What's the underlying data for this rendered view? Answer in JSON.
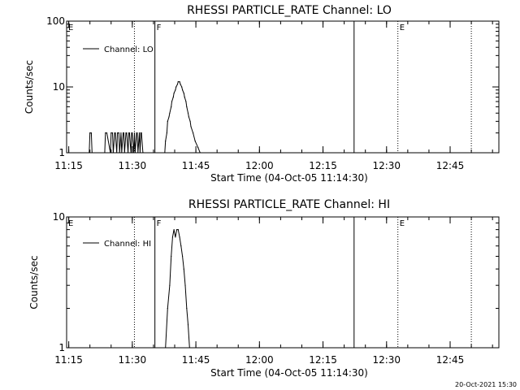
{
  "chart_data": [
    {
      "type": "line",
      "title": "RHESSI PARTICLE_RATE Channel: LO",
      "xlabel": "Start Time (04-Oct-05 11:14:30)",
      "ylabel": "Counts/sec",
      "y_scale": "log",
      "ylim": [
        1,
        100
      ],
      "y_ticks": [
        1,
        10,
        100
      ],
      "xlim": [
        "11:14:30",
        "12:56:30"
      ],
      "x_tick_labels": [
        "11:15",
        "11:30",
        "11:45",
        "12:00",
        "12:15",
        "12:30",
        "12:45"
      ],
      "x_tick_values": [
        "11:15",
        "11:30",
        "11:45",
        "12:00",
        "12:15",
        "12:30",
        "12:45"
      ],
      "grid": false,
      "legend_position": "top-left",
      "series": [
        {
          "name": "Channel: LO",
          "x": [
            "11:19:50",
            "11:20:00",
            "11:20:20",
            "11:20:30",
            "11:23:30",
            "11:23:40",
            "11:24:00",
            "11:24:50",
            "11:25:00",
            "11:25:20",
            "11:25:30",
            "11:25:50",
            "11:26:00",
            "11:26:20",
            "11:26:30",
            "11:26:50",
            "11:27:00",
            "11:27:20",
            "11:27:30",
            "11:27:50",
            "11:28:00",
            "11:28:10",
            "11:28:30",
            "11:28:40",
            "11:29:00",
            "11:29:10",
            "11:29:20",
            "11:29:40",
            "11:29:50",
            "11:30:00",
            "11:30:20",
            "11:30:30",
            "11:30:40",
            "11:31:00",
            "11:31:10",
            "11:31:20",
            "11:31:40",
            "11:31:50",
            "11:32:00",
            "11:32:10",
            "11:32:30",
            "11:32:40",
            "11:37:40",
            "11:37:50",
            "11:38:10",
            "11:38:20",
            "11:38:40",
            "11:38:50",
            "11:39:10",
            "11:39:20",
            "11:39:40",
            "11:39:50",
            "11:40:10",
            "11:40:20",
            "11:40:40",
            "11:40:50",
            "11:41:10",
            "11:41:20",
            "11:41:40",
            "11:41:50",
            "11:42:10",
            "11:42:20",
            "11:42:40",
            "11:42:50",
            "11:43:10",
            "11:43:20",
            "11:43:40",
            "11:43:50",
            "11:44:20",
            "11:44:50",
            "11:45:30",
            "11:46:00"
          ],
          "y": [
            1,
            2,
            2,
            1,
            1,
            2,
            2,
            1,
            2,
            2,
            1,
            2,
            2,
            1,
            2,
            2,
            1,
            2,
            1,
            2,
            2,
            1,
            2,
            2,
            1,
            2,
            2,
            1,
            2,
            2,
            1,
            2,
            1,
            2,
            2,
            1,
            2,
            1,
            2,
            2,
            1,
            1,
            1,
            1.5,
            2,
            3,
            3.5,
            4,
            5,
            6,
            7,
            8,
            9,
            10,
            11,
            12,
            12,
            11,
            10,
            9,
            8,
            7,
            6,
            5,
            4,
            3.5,
            3,
            2.5,
            2,
            1.5,
            1.2,
            1
          ]
        }
      ],
      "annotations": [
        {
          "text": "E",
          "x": "11:14:30"
        },
        {
          "text": "F",
          "x": "11:35:20"
        },
        {
          "text": "E",
          "x": "12:32:40"
        }
      ],
      "vertical_lines": [
        {
          "x": "11:30:30",
          "style": "dotted"
        },
        {
          "x": "11:35:20",
          "style": "solid"
        },
        {
          "x": "12:22:20",
          "style": "solid"
        },
        {
          "x": "12:32:40",
          "style": "dotted"
        },
        {
          "x": "12:50:00",
          "style": "dotted"
        }
      ]
    },
    {
      "type": "line",
      "title": "RHESSI PARTICLE_RATE Channel: HI",
      "xlabel": "Start Time (04-Oct-05 11:14:30)",
      "ylabel": "Counts/sec",
      "y_scale": "log",
      "ylim": [
        1,
        10
      ],
      "y_ticks": [
        1,
        10
      ],
      "xlim": [
        "11:14:30",
        "12:56:30"
      ],
      "x_tick_labels": [
        "11:15",
        "11:30",
        "11:45",
        "12:00",
        "12:15",
        "12:30",
        "12:45"
      ],
      "x_tick_values": [
        "11:15",
        "11:30",
        "11:45",
        "12:00",
        "12:15",
        "12:30",
        "12:45"
      ],
      "grid": false,
      "legend_position": "top-left",
      "series": [
        {
          "name": "Channel: HI",
          "x": [
            "11:37:50",
            "11:38:20",
            "11:38:50",
            "11:39:10",
            "11:39:30",
            "11:39:50",
            "11:40:10",
            "11:40:30",
            "11:40:50",
            "11:41:10",
            "11:41:30",
            "11:41:50",
            "11:42:10",
            "11:42:30",
            "11:42:50",
            "11:43:10",
            "11:43:30"
          ],
          "y": [
            1,
            2,
            3,
            5,
            7,
            8,
            7,
            8,
            8,
            7,
            6,
            5,
            4,
            3,
            2,
            1.5,
            1
          ]
        }
      ],
      "annotations": [
        {
          "text": "E",
          "x": "11:14:30"
        },
        {
          "text": "F",
          "x": "11:35:20"
        },
        {
          "text": "E",
          "x": "12:32:40"
        }
      ],
      "vertical_lines": [
        {
          "x": "11:30:30",
          "style": "dotted"
        },
        {
          "x": "11:35:20",
          "style": "solid"
        },
        {
          "x": "12:22:20",
          "style": "solid"
        },
        {
          "x": "12:32:40",
          "style": "dotted"
        },
        {
          "x": "12:50:00",
          "style": "dotted"
        }
      ]
    }
  ],
  "footer_timestamp": "20-Oct-2021 15:30",
  "colors": {
    "background": "#ffffff",
    "foreground": "#000000"
  }
}
